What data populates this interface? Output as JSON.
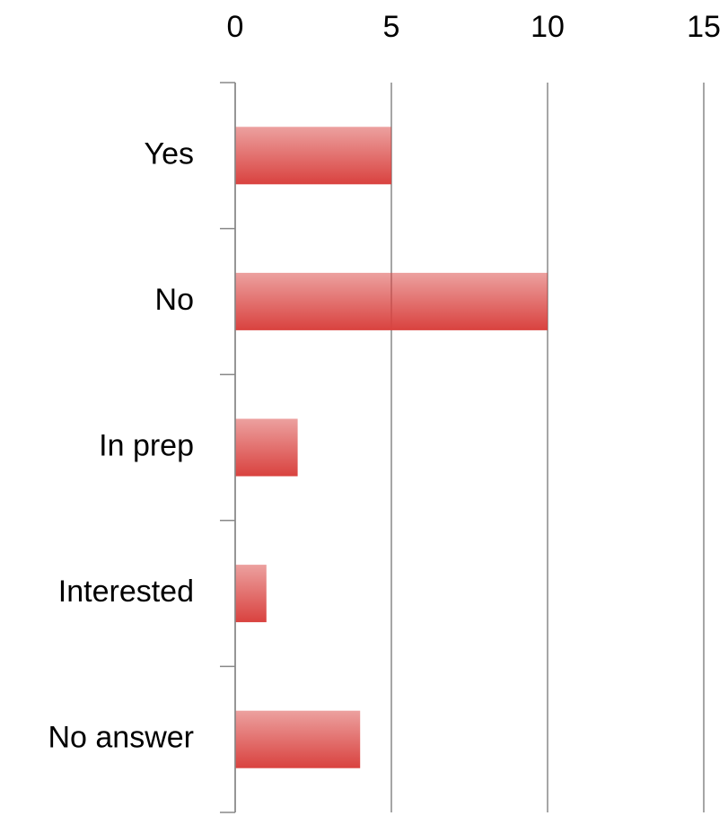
{
  "chart_data": {
    "type": "barh",
    "categories": [
      "Yes",
      "No",
      "In prep",
      "Interested",
      "No answer"
    ],
    "values": [
      5,
      10,
      2,
      1,
      4
    ],
    "color": "#d9423f",
    "xlim": [
      0,
      15
    ],
    "xticks": [
      0,
      5,
      10,
      15
    ],
    "grid": true
  }
}
